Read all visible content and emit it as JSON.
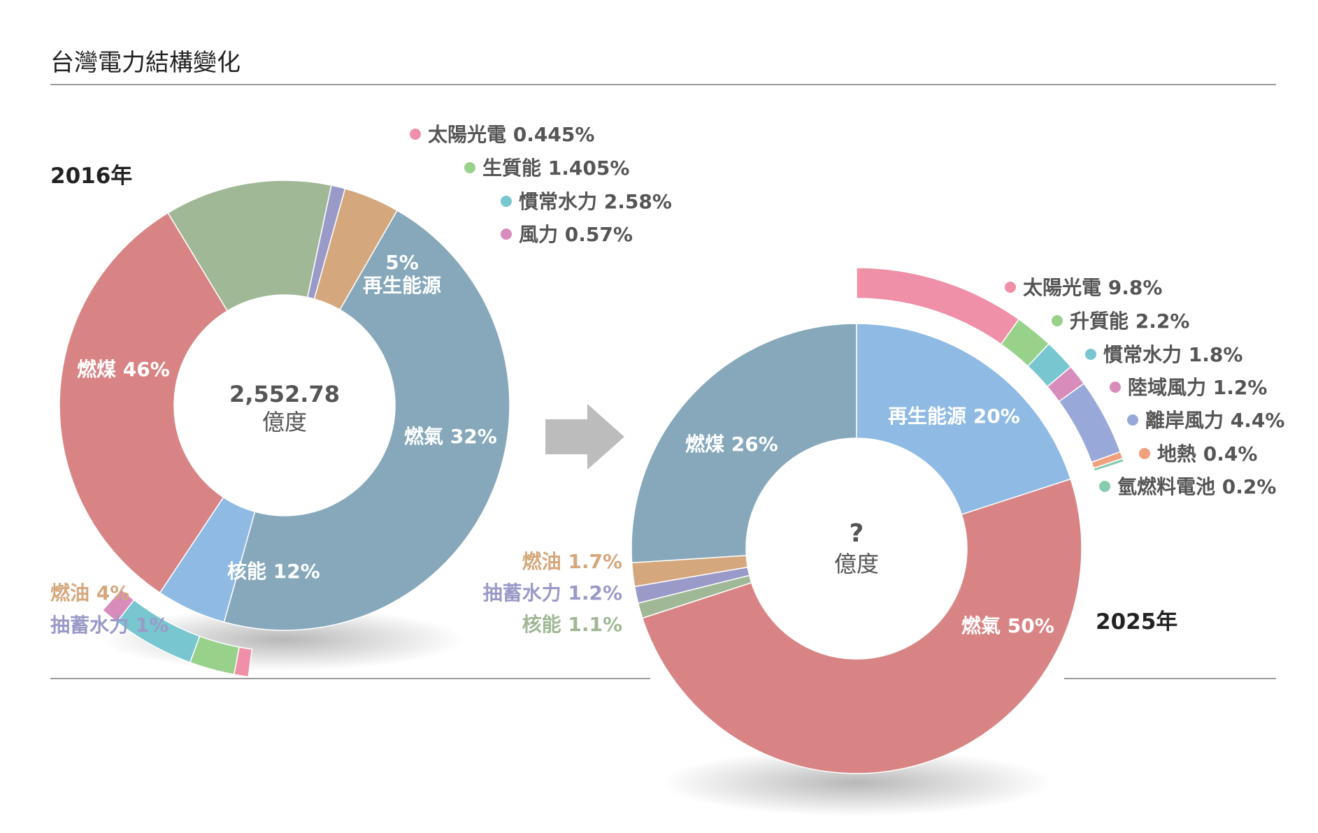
{
  "page": {
    "title": "台灣電力結構變化"
  },
  "chart_data": [
    {
      "type": "pie",
      "subtitle": "2016年",
      "center_value": "2,552.78",
      "center_unit": "億度",
      "slices": [
        {
          "label": "燃煤",
          "text": "燃煤 46%",
          "value": 46,
          "color": "#86a8ba"
        },
        {
          "label": "再生能源",
          "text_pct": "5%",
          "text_name": "再生能源",
          "value": 5,
          "color": "#8ebae4"
        },
        {
          "label": "燃氣",
          "text": "燃氣 32%",
          "value": 32,
          "color": "#d98484"
        },
        {
          "label": "核能",
          "text": "核能 12%",
          "value": 12,
          "color": "#a0b896"
        },
        {
          "label": "抽蓄水力",
          "text": "抽蓄水力 1%",
          "value": 1,
          "color": "#9a9ac8"
        },
        {
          "label": "燃油",
          "text": "燃油 4%",
          "value": 4,
          "color": "#d5a77c"
        }
      ],
      "renewable_breakdown": [
        {
          "label": "太陽光電",
          "text": "太陽光電 0.445%",
          "value": 0.445,
          "color": "#ef90a8"
        },
        {
          "label": "生質能",
          "text": "生質能 1.405%",
          "value": 1.405,
          "color": "#98d28a"
        },
        {
          "label": "慣常水力",
          "text": "慣常水力 2.58%",
          "value": 2.58,
          "color": "#78c6d0"
        },
        {
          "label": "風力",
          "text": "風力 0.57%",
          "value": 0.57,
          "color": "#d88cbc"
        }
      ]
    },
    {
      "type": "pie",
      "subtitle": "2025年",
      "center_value": "?",
      "center_unit": "億度",
      "slices": [
        {
          "label": "再生能源",
          "text": "再生能源 20%",
          "value": 20,
          "color": "#8ebae4"
        },
        {
          "label": "燃氣",
          "text": "燃氣 50%",
          "value": 50,
          "color": "#d98484"
        },
        {
          "label": "核能",
          "text": "核能 1.1%",
          "value": 1.1,
          "color": "#a0b896"
        },
        {
          "label": "抽蓄水力",
          "text": "抽蓄水力 1.2%",
          "value": 1.2,
          "color": "#9a9ac8"
        },
        {
          "label": "燃油",
          "text": "燃油 1.7%",
          "value": 1.7,
          "color": "#d5a77c"
        },
        {
          "label": "燃煤",
          "text": "燃煤 26%",
          "value": 26,
          "color": "#86a8ba"
        }
      ],
      "renewable_breakdown": [
        {
          "label": "太陽光電",
          "text": "太陽光電 9.8%",
          "value": 9.8,
          "color": "#ef90a8"
        },
        {
          "label": "升質能",
          "text": "升質能 2.2%",
          "value": 2.2,
          "color": "#98d28a"
        },
        {
          "label": "慣常水力",
          "text": "慣常水力 1.8%",
          "value": 1.8,
          "color": "#78c6d0"
        },
        {
          "label": "陸域風力",
          "text": "陸域風力 1.2%",
          "value": 1.2,
          "color": "#d88cbc"
        },
        {
          "label": "離岸風力",
          "text": "離岸風力 4.4%",
          "value": 4.4,
          "color": "#98a8d8"
        },
        {
          "label": "地熱",
          "text": "地熱 0.4%",
          "value": 0.4,
          "color": "#f0a07c"
        },
        {
          "label": "氫燃料電池",
          "text": "氫燃料電池 0.2%",
          "value": 0.2,
          "color": "#88ccb0"
        }
      ]
    }
  ]
}
